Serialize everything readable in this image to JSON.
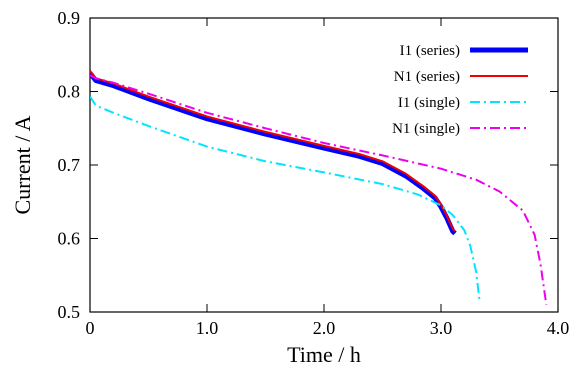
{
  "chart_data": {
    "type": "line",
    "xlabel": "Time / h",
    "ylabel": "Current / A",
    "xlim": [
      0,
      4
    ],
    "ylim": [
      0.5,
      0.9
    ],
    "xticks": [
      "0",
      "1.0",
      "2.0",
      "3.0",
      "4.0"
    ],
    "xtick_values": [
      0,
      1,
      2,
      3,
      4
    ],
    "yticks": [
      "0.5",
      "0.6",
      "0.7",
      "0.8",
      "0.9"
    ],
    "ytick_values": [
      0.5,
      0.6,
      0.7,
      0.8,
      0.9
    ],
    "grid": false,
    "legend_position": "top-right",
    "series": [
      {
        "name": "I1 (series)",
        "color": "#0000ff",
        "style": "solid-thick",
        "x": [
          0,
          0.05,
          0.2,
          0.5,
          1.0,
          1.5,
          2.0,
          2.3,
          2.5,
          2.7,
          2.85,
          2.95,
          3.0,
          3.05,
          3.1,
          3.12
        ],
        "y": [
          0.825,
          0.815,
          0.808,
          0.79,
          0.763,
          0.742,
          0.723,
          0.712,
          0.702,
          0.685,
          0.668,
          0.655,
          0.643,
          0.628,
          0.61,
          0.607
        ]
      },
      {
        "name": "N1 (series)",
        "color": "#ee0000",
        "style": "solid",
        "x": [
          0,
          0.05,
          0.2,
          0.5,
          1.0,
          1.5,
          2.0,
          2.3,
          2.5,
          2.7,
          2.85,
          2.95,
          3.0,
          3.05,
          3.1,
          3.12
        ],
        "y": [
          0.828,
          0.818,
          0.811,
          0.793,
          0.766,
          0.745,
          0.726,
          0.715,
          0.705,
          0.688,
          0.671,
          0.658,
          0.646,
          0.631,
          0.613,
          0.61
        ]
      },
      {
        "name": "I1 (single)",
        "color": "#00e5ff",
        "style": "dash-dot",
        "x": [
          0,
          0.05,
          0.2,
          0.5,
          1.0,
          1.5,
          2.0,
          2.5,
          2.8,
          3.0,
          3.1,
          3.2,
          3.25,
          3.3,
          3.33
        ],
        "y": [
          0.793,
          0.781,
          0.771,
          0.753,
          0.725,
          0.705,
          0.69,
          0.674,
          0.66,
          0.645,
          0.632,
          0.611,
          0.59,
          0.555,
          0.515
        ]
      },
      {
        "name": "N1 (single)",
        "color": "#ee00ee",
        "style": "dash-dot",
        "x": [
          0,
          0.05,
          0.2,
          0.5,
          1.0,
          1.5,
          2.0,
          2.5,
          3.0,
          3.3,
          3.5,
          3.7,
          3.8,
          3.85,
          3.9
        ],
        "y": [
          0.822,
          0.818,
          0.812,
          0.797,
          0.771,
          0.75,
          0.73,
          0.713,
          0.695,
          0.68,
          0.664,
          0.638,
          0.605,
          0.565,
          0.51
        ]
      }
    ]
  }
}
